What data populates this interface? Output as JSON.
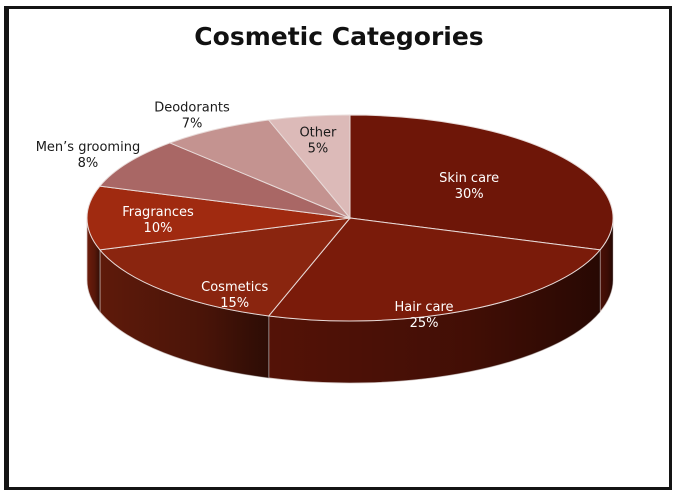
{
  "chart_data": {
    "type": "pie",
    "title": "Cosmetic Categories",
    "slices": [
      {
        "label": "Skin care",
        "value": 30,
        "percent_text": "30%",
        "color": "#6e1608"
      },
      {
        "label": "Hair care",
        "value": 25,
        "percent_text": "25%",
        "color": "#7a1b0a"
      },
      {
        "label": "Cosmetics",
        "value": 15,
        "percent_text": "15%",
        "color": "#8a250f"
      },
      {
        "label": "Fragrances",
        "value": 10,
        "percent_text": "10%",
        "color": "#a02a10"
      },
      {
        "label": "Men’s grooming",
        "value": 8,
        "percent_text": "8%",
        "color": "#a96765"
      },
      {
        "label": "Deodorants",
        "value": 7,
        "percent_text": "7%",
        "color": "#c49390"
      },
      {
        "label": "Other",
        "value": 5,
        "percent_text": "5%",
        "color": "#dcbab8"
      }
    ],
    "style": "3d-exploded-none",
    "legend": "none"
  }
}
